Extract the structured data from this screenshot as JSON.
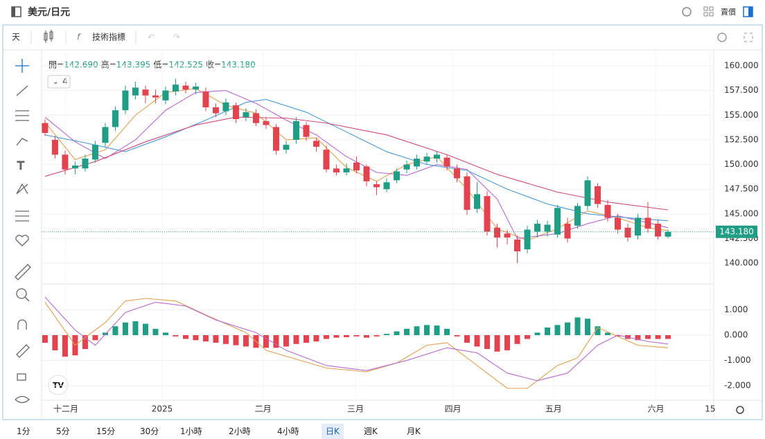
{
  "header": {
    "title": "美元/日元",
    "side": "賣價"
  },
  "toolbar": {
    "period": "天",
    "indicators": "技術指標"
  },
  "legend": {
    "items": [
      {
        "label": "開=",
        "value": "142.690"
      },
      {
        "label": "高=",
        "value": "143.395"
      },
      {
        "label": "低=",
        "value": "142.525"
      },
      {
        "label": "收=",
        "value": "143.180"
      }
    ],
    "badge": "4"
  },
  "timeframes": {
    "items": [
      "1分",
      "5分",
      "15分",
      "30分",
      "1小時",
      "2小時",
      "4小時",
      "日K",
      "週K",
      "月K"
    ],
    "active": "日K"
  },
  "chart_data": {
    "type": "candlestick",
    "up_color": "#1f9e85",
    "down_color": "#e3424f",
    "grid": true,
    "xlim": [
      -0.34,
      66.55
    ],
    "xticks": [
      {
        "value": 2.07,
        "label": "十二月"
      },
      {
        "value": 11.66,
        "label": "2025"
      },
      {
        "value": 21.7,
        "label": "二月"
      },
      {
        "value": 30.9,
        "label": "三月"
      },
      {
        "value": 40.6,
        "label": "四月"
      },
      {
        "value": 50.6,
        "label": "五月"
      },
      {
        "value": 60.8,
        "label": "六月"
      },
      {
        "value": 66.2,
        "label": "15"
      }
    ],
    "ylim": [
      137.9,
      161.2
    ],
    "yticks": [
      {
        "value": 140,
        "label": "140.000"
      },
      {
        "value": 142.5,
        "label": "142.500"
      },
      {
        "value": 145,
        "label": "145.000"
      },
      {
        "value": 147.5,
        "label": "147.500"
      },
      {
        "value": 150,
        "label": "150.000"
      },
      {
        "value": 152.5,
        "label": "152.500"
      },
      {
        "value": 155,
        "label": "155.000"
      },
      {
        "value": 157.5,
        "label": "157.500"
      },
      {
        "value": 160,
        "label": "160.000"
      }
    ],
    "last": {
      "value": 143.18,
      "label": "143.180"
    },
    "candles": {
      "x": [
        0,
        1,
        2,
        3,
        4,
        5,
        6,
        7,
        8,
        9,
        10,
        11,
        12,
        13,
        14,
        15,
        16,
        17,
        18,
        19,
        20,
        21,
        22,
        23,
        24,
        25,
        26,
        27,
        28,
        29,
        30,
        31,
        32,
        33,
        34,
        35,
        36,
        37,
        38,
        39,
        40,
        41,
        42,
        43,
        44,
        45,
        46,
        47,
        48,
        49,
        50,
        51,
        52,
        53,
        54,
        55,
        56,
        57,
        58,
        59,
        60,
        61,
        62
      ],
      "open": [
        154.2,
        152.5,
        151.0,
        149.6,
        149.6,
        150.5,
        152.2,
        153.8,
        155.5,
        157.0,
        157.6,
        157.0,
        156.5,
        157.4,
        158.0,
        157.6,
        157.4,
        155.8,
        155.4,
        156.0,
        154.8,
        155.2,
        154.4,
        153.8,
        151.5,
        152.5,
        154.0,
        152.4,
        151.5,
        149.6,
        149.2,
        150.2,
        149.8,
        148.0,
        147.5,
        148.4,
        149.5,
        149.8,
        150.3,
        150.6,
        150.7,
        149.6,
        148.8,
        145.5,
        146.8,
        143.6,
        143.0,
        142.4,
        141.4,
        143.2,
        143.2,
        142.9,
        144.0,
        143.8,
        145.8,
        147.8,
        145.9,
        144.6,
        143.6,
        142.8,
        144.6,
        144.0,
        142.69
      ],
      "high": [
        154.6,
        152.9,
        151.4,
        150.3,
        151.0,
        152.4,
        154.2,
        155.9,
        158.0,
        158.4,
        158.0,
        157.6,
        157.9,
        158.7,
        158.4,
        158.3,
        157.8,
        156.2,
        156.7,
        156.3,
        155.7,
        155.6,
        154.8,
        154.1,
        152.4,
        154.8,
        154.3,
        152.7,
        151.9,
        150.0,
        150.1,
        150.8,
        150.0,
        148.3,
        148.6,
        149.6,
        150.4,
        151.0,
        151.2,
        151.3,
        151.0,
        150.0,
        149.2,
        148.2,
        147.3,
        144.0,
        143.4,
        142.8,
        143.8,
        144.4,
        144.3,
        145.9,
        144.6,
        146.1,
        148.8,
        148.1,
        146.4,
        145.0,
        144.0,
        145.0,
        146.2,
        144.4,
        143.395
      ],
      "low": [
        152.9,
        150.6,
        149.0,
        149.0,
        149.3,
        150.2,
        151.8,
        153.4,
        155.1,
        156.6,
        156.2,
        156.2,
        156.1,
        157.0,
        157.2,
        157.1,
        155.4,
        154.8,
        155.0,
        154.2,
        154.4,
        153.9,
        153.6,
        151.0,
        151.1,
        152.1,
        152.4,
        151.3,
        149.2,
        148.9,
        148.9,
        149.1,
        147.8,
        146.9,
        147.2,
        148.1,
        149.1,
        149.5,
        150.0,
        150.2,
        149.4,
        148.2,
        144.9,
        145.1,
        142.8,
        141.6,
        141.9,
        140.0,
        141.0,
        142.6,
        142.7,
        142.6,
        142.1,
        143.5,
        145.4,
        145.6,
        144.2,
        143.0,
        142.2,
        142.4,
        143.1,
        142.4,
        142.525
      ],
      "close": [
        153.2,
        151.0,
        149.5,
        149.9,
        150.6,
        152.0,
        153.8,
        155.5,
        157.5,
        157.8,
        157.0,
        156.8,
        157.5,
        158.1,
        157.6,
        157.9,
        155.8,
        155.2,
        156.3,
        154.6,
        155.3,
        154.2,
        154.0,
        151.4,
        152.0,
        154.4,
        152.8,
        151.8,
        149.5,
        149.2,
        149.6,
        149.4,
        148.3,
        147.7,
        148.2,
        149.3,
        150.0,
        150.6,
        150.8,
        151.0,
        149.8,
        148.6,
        145.4,
        147.0,
        143.2,
        142.6,
        142.6,
        141.2,
        143.4,
        144.0,
        143.9,
        145.6,
        142.5,
        145.8,
        148.4,
        146.0,
        144.6,
        143.4,
        142.6,
        144.6,
        143.5,
        142.7,
        143.18
      ]
    },
    "lines": [
      {
        "color": "#e0a050",
        "x": [
          0,
          3,
          6,
          9,
          12,
          15,
          18,
          21,
          24,
          27,
          30,
          33,
          36,
          39,
          42,
          45,
          48,
          51,
          54,
          57,
          60,
          62
        ],
        "values": [
          154.3,
          150.5,
          151.5,
          155,
          157.3,
          157.7,
          156,
          155.2,
          152.5,
          152.7,
          149.7,
          148.3,
          150,
          150.8,
          147.5,
          143.5,
          142.3,
          143.5,
          145.3,
          144.6,
          143.6,
          143.3
        ]
      },
      {
        "color": "#b86ad0",
        "x": [
          0,
          3,
          6,
          9,
          12,
          15,
          18,
          21,
          24,
          27,
          30,
          33,
          36,
          39,
          42,
          45,
          47,
          51,
          54,
          57,
          60,
          62
        ],
        "values": [
          154.8,
          152.3,
          150.6,
          152.5,
          155.5,
          157.3,
          157.5,
          156.2,
          154.5,
          153,
          150.8,
          149.2,
          148.9,
          150,
          149.5,
          146.5,
          142.5,
          143,
          144,
          144.8,
          144.1,
          143.6
        ]
      },
      {
        "color": "#4a9ad8",
        "x": [
          0,
          4,
          8,
          12,
          16,
          20,
          22,
          26,
          30,
          34,
          38,
          42,
          46,
          50,
          54,
          58,
          62
        ],
        "values": [
          153,
          152.2,
          151.3,
          152.8,
          154.5,
          156.3,
          156.6,
          155.3,
          153.3,
          151.3,
          150,
          149.4,
          147.5,
          146,
          145,
          144.6,
          144.3
        ]
      },
      {
        "color": "#cc4a7a",
        "x": [
          0,
          5,
          10,
          15,
          19,
          24,
          28,
          34,
          40,
          45,
          51,
          56,
          62
        ],
        "values": [
          148.8,
          150.3,
          152.3,
          154,
          154.8,
          154.7,
          154.2,
          153,
          151,
          149,
          147.2,
          146.2,
          145.4
        ]
      }
    ],
    "macd": {
      "ylim": [
        -2.49,
        1.97
      ],
      "yticks": [
        {
          "value": 1,
          "label": "1.000"
        },
        {
          "value": 0,
          "label": "0.000"
        },
        {
          "value": -1,
          "label": "-1.000"
        },
        {
          "value": -2,
          "label": "-2.000"
        }
      ],
      "hist": [
        -0.3,
        -0.6,
        -0.85,
        -0.8,
        -0.55,
        -0.2,
        0.1,
        0.35,
        0.5,
        0.55,
        0.45,
        0.25,
        0.1,
        -0.05,
        -0.15,
        -0.2,
        -0.25,
        -0.3,
        -0.35,
        -0.4,
        -0.45,
        -0.5,
        -0.5,
        -0.5,
        -0.45,
        -0.35,
        -0.3,
        -0.25,
        -0.15,
        -0.1,
        -0.08,
        -0.05,
        -0.1,
        -0.05,
        0.05,
        0.15,
        0.25,
        0.35,
        0.4,
        0.38,
        0.25,
        -0.05,
        -0.3,
        -0.45,
        -0.55,
        -0.65,
        -0.6,
        -0.35,
        -0.15,
        0.1,
        0.3,
        0.4,
        0.5,
        0.7,
        0.65,
        0.35,
        0.1,
        -0.05,
        -0.15,
        -0.2,
        -0.15,
        -0.15,
        -0.15
      ],
      "lines": [
        {
          "color": "#e0a050",
          "x": [
            0,
            3,
            6,
            8,
            10,
            13,
            16,
            20,
            22,
            25,
            28,
            32,
            35,
            38,
            40,
            43,
            46,
            48,
            51,
            53,
            55,
            57,
            59,
            62
          ],
          "values": [
            1.3,
            -0.4,
            0.5,
            1.35,
            1.45,
            1.35,
            0.8,
            0.1,
            -0.6,
            -0.95,
            -1.3,
            -1.45,
            -1.1,
            -0.4,
            -0.3,
            -1.2,
            -2.1,
            -2.1,
            -1.2,
            -0.9,
            0.3,
            -0.05,
            -0.4,
            -0.5
          ]
        },
        {
          "color": "#b86ad0",
          "x": [
            0,
            3,
            5,
            8,
            11,
            14,
            17,
            21,
            24,
            28,
            32,
            36,
            40,
            43,
            46,
            49,
            52,
            55,
            57,
            60,
            62
          ],
          "values": [
            1.5,
            0.2,
            -0.4,
            0.9,
            1.3,
            1.15,
            0.6,
            0.1,
            -0.6,
            -1.2,
            -1.4,
            -1.0,
            -0.5,
            -0.7,
            -1.5,
            -1.8,
            -1.5,
            -0.4,
            0.0,
            -0.25,
            -0.35
          ]
        }
      ]
    }
  }
}
